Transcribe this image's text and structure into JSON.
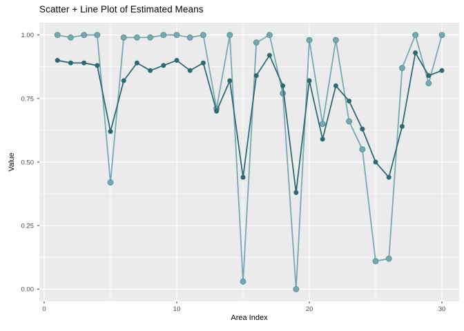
{
  "chart_data": {
    "type": "line",
    "title": "Scatter + Line Plot of Estimated Means",
    "xlabel": "Area Index",
    "ylabel": "Value",
    "x": [
      1,
      2,
      3,
      4,
      5,
      6,
      7,
      8,
      9,
      10,
      11,
      12,
      13,
      14,
      15,
      16,
      17,
      18,
      19,
      20,
      21,
      22,
      23,
      24,
      25,
      26,
      27,
      28,
      29,
      30
    ],
    "series": [
      {
        "name": "estimated-means-light",
        "color": "#74A9B1",
        "point_stroke": "#5E939D",
        "values": [
          1.0,
          0.99,
          1.0,
          1.0,
          0.42,
          0.99,
          0.99,
          0.99,
          1.0,
          1.0,
          0.99,
          1.0,
          0.71,
          1.0,
          0.03,
          0.97,
          1.0,
          0.77,
          0.0,
          0.98,
          0.65,
          0.98,
          0.66,
          0.55,
          0.11,
          0.12,
          0.87,
          1.0,
          0.81,
          1.0
        ]
      },
      {
        "name": "estimated-means-dark",
        "color": "#2D6973",
        "point_stroke": "#2D6973",
        "values": [
          0.9,
          0.89,
          0.89,
          0.88,
          0.62,
          0.82,
          0.89,
          0.86,
          0.88,
          0.9,
          0.86,
          0.89,
          0.7,
          0.82,
          0.44,
          0.84,
          0.92,
          0.8,
          0.38,
          0.82,
          0.59,
          0.8,
          0.74,
          0.63,
          0.5,
          0.44,
          0.64,
          0.93,
          0.84,
          0.86
        ]
      }
    ],
    "xlim": [
      -0.36,
      31.3
    ],
    "ylim": [
      -0.05,
      1.05
    ],
    "x_ticks": [
      {
        "label": "0",
        "value": 0
      },
      {
        "label": "10",
        "value": 10
      },
      {
        "label": "20",
        "value": 20
      },
      {
        "label": "30",
        "value": 30
      }
    ],
    "y_ticks": [
      {
        "label": "0.00",
        "value": 0
      },
      {
        "label": "0.25",
        "value": 0.25
      },
      {
        "label": "0.50",
        "value": 0.5
      },
      {
        "label": "0.75",
        "value": 0.75
      },
      {
        "label": "1.00",
        "value": 1
      }
    ],
    "x_minor": [
      5,
      15,
      25
    ],
    "y_minor": [
      0.125,
      0.375,
      0.625,
      0.875
    ],
    "grid": true,
    "legend": false,
    "colors": {
      "panel_bg": "#EBEBEB",
      "grid": "#FFFFFF",
      "tick_label": "#4D4D4D",
      "tick_mark": "#333333",
      "title": "#000000",
      "axis_title": "#000000"
    }
  }
}
